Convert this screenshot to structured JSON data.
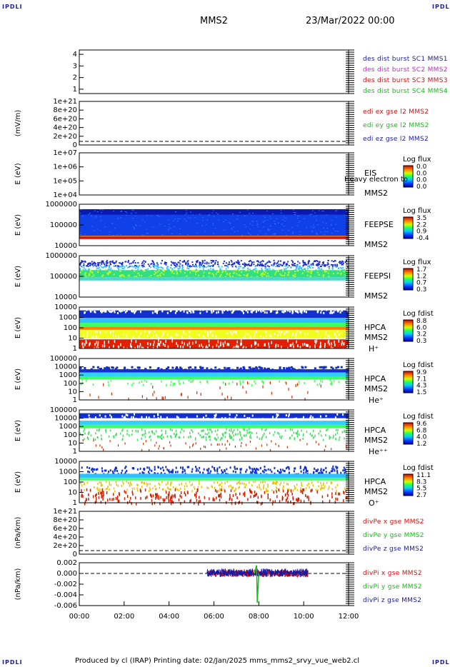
{
  "corner_label": "IPDLI",
  "header": {
    "spacecraft": "MMS2",
    "datetime": "23/Mar/2022 00:00"
  },
  "footer": "Produced by cl (IRAP)   Printing date: 02/Jan/2025   mms_mms2_srvy_vue_web2.cl",
  "x_ticks": [
    "00:00",
    "02:00",
    "04:00",
    "06:00",
    "08:00",
    "10:00",
    "12:00"
  ],
  "panels": [
    {
      "id": "des",
      "ylabel": "",
      "yticks": [
        "4",
        "3",
        "2",
        "1"
      ],
      "legend": [
        {
          "text": "des dist burst SC1 MMS1",
          "color": "#1a1aa0"
        },
        {
          "text": "des dist burst SC2 MMS2",
          "color": "#d020d0"
        },
        {
          "text": "des dist burst SC3 MMS3",
          "color": "#d01010"
        },
        {
          "text": "des dist burst SC4 MMS4",
          "color": "#10c010"
        }
      ]
    },
    {
      "id": "edi",
      "ylabel": "(mV/m)",
      "yticks": [
        "1e+21",
        "8e+20",
        "6e+20",
        "4e+20",
        "2e+20",
        "0"
      ],
      "legend": [
        {
          "text": "edi ex gse l2 MMS2",
          "color": "#d01010"
        },
        {
          "text": "edi ey gse l2 MMS2",
          "color": "#10c010"
        },
        {
          "text": "edi ez gse l2 MMS2",
          "color": "#1a1aa0"
        }
      ]
    },
    {
      "id": "eis",
      "ylabel": "E (eV)",
      "yticks": [
        "1e+07",
        "1e+06",
        "1e+05",
        "1e+04"
      ],
      "instrument": [
        "EIS",
        "MMS2"
      ],
      "overlay": "Heavy electron to",
      "cbar_title": "Log flux",
      "cbar_ticks": [
        "0.0",
        "0.0",
        "0.0",
        "0.0"
      ]
    },
    {
      "id": "feepse",
      "ylabel": "E (eV)",
      "yticks": [
        "1000000",
        "100000",
        "10000"
      ],
      "instrument": [
        "FEEPSE",
        "MMS2"
      ],
      "cbar_title": "Log flux",
      "cbar_ticks": [
        "3.5",
        "2.2",
        "0.9",
        "-0.4"
      ]
    },
    {
      "id": "feepsi",
      "ylabel": "E (eV)",
      "yticks": [
        "1000000",
        "100000",
        "10000"
      ],
      "instrument": [
        "FEEPSI",
        "MMS2"
      ],
      "cbar_title": "Log flux",
      "cbar_ticks": [
        "1.7",
        "1.2",
        "0.7",
        "0.3"
      ]
    },
    {
      "id": "hpca_h",
      "ylabel": "E (eV)",
      "yticks": [
        "10000",
        "1000",
        "100",
        "10",
        "1"
      ],
      "instrument": [
        "HPCA",
        "MMS2",
        "H⁺"
      ],
      "cbar_title": "Log fdist",
      "cbar_ticks": [
        "8.8",
        "6.0",
        "3.2",
        "0.3"
      ]
    },
    {
      "id": "hpca_he",
      "ylabel": "E (eV)",
      "yticks": [
        "100000",
        "10000",
        "1000",
        "100",
        "10",
        "1"
      ],
      "instrument": [
        "HPCA",
        "MMS2",
        "He⁺"
      ],
      "cbar_title": "Log fdist",
      "cbar_ticks": [
        "9.9",
        "7.1",
        "4.3",
        "1.5"
      ]
    },
    {
      "id": "hpca_hepp",
      "ylabel": "E (eV)",
      "yticks": [
        "100000",
        "10000",
        "1000",
        "100",
        "10",
        "1"
      ],
      "instrument": [
        "HPCA",
        "MMS2",
        "He⁺⁺"
      ],
      "cbar_title": "Log fdist",
      "cbar_ticks": [
        "9.6",
        "6.8",
        "4.0",
        "1.2"
      ]
    },
    {
      "id": "hpca_o",
      "ylabel": "E (eV)",
      "yticks": [
        "10000",
        "1000",
        "100",
        "10",
        "1"
      ],
      "instrument": [
        "HPCA",
        "MMS2",
        "O⁺"
      ],
      "cbar_title": "Log fdist",
      "cbar_ticks": [
        "11.1",
        "8.3",
        "5.5",
        "2.7"
      ]
    },
    {
      "id": "divpe",
      "ylabel": "(nPa/km)",
      "yticks": [
        "1e+21",
        "8e+20",
        "6e+20",
        "4e+20",
        "2e+20",
        "0"
      ],
      "legend": [
        {
          "text": "divPe x gse MMS2",
          "color": "#d01010"
        },
        {
          "text": "divPe y gse MMS2",
          "color": "#10c010"
        },
        {
          "text": "divPe z gse MMS2",
          "color": "#1a1aa0"
        }
      ]
    },
    {
      "id": "divpi",
      "ylabel": "(nPa/km)",
      "yticks": [
        "0.002",
        "0.000",
        "-0.002",
        "-0.004",
        "-0.006"
      ],
      "legend": [
        {
          "text": "divPi x gse MMS2",
          "color": "#d01010"
        },
        {
          "text": "divPi y gse MMS2",
          "color": "#10c010"
        },
        {
          "text": "divPi z gse MMS2",
          "color": "#1a1aa0"
        }
      ]
    }
  ],
  "chart_data": {
    "type": "heatmap",
    "x_range": [
      "00:00",
      "12:00"
    ],
    "divpi_series": [
      {
        "name": "divPi x gse MMS2",
        "color": "#d01010",
        "x_hours": [
          5.7,
          10.2
        ],
        "y_range": [
          -0.0005,
          0.0008
        ]
      },
      {
        "name": "divPi y gse MMS2",
        "color": "#10c010",
        "spike_at_hour": 7.9,
        "spike_min": -0.0055
      },
      {
        "name": "divPi z gse MMS2",
        "color": "#1a1aa0",
        "x_hours": [
          5.7,
          10.2
        ],
        "y_range": [
          -0.0003,
          0.0012
        ]
      }
    ]
  }
}
